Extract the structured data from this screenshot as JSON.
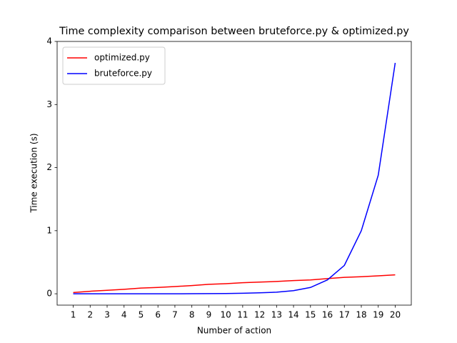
{
  "chart_data": {
    "type": "line",
    "title": "Time complexity comparison between bruteforce.py & optimized.py",
    "x_label": "Number of action",
    "y_label": "Time execution (s)",
    "x": [
      1,
      2,
      3,
      4,
      5,
      6,
      7,
      8,
      9,
      10,
      11,
      12,
      13,
      14,
      15,
      16,
      17,
      18,
      19,
      20
    ],
    "series": [
      {
        "name": "optimized.py",
        "color": "#ff0000",
        "values": [
          0.02,
          0.04,
          0.055,
          0.07,
          0.09,
          0.1,
          0.115,
          0.13,
          0.15,
          0.16,
          0.175,
          0.185,
          0.195,
          0.21,
          0.22,
          0.24,
          0.26,
          0.27,
          0.285,
          0.3
        ]
      },
      {
        "name": "bruteforce.py",
        "color": "#0000ff",
        "values": [
          0,
          0,
          0,
          0,
          0,
          0,
          0,
          0.001,
          0.002,
          0.004,
          0.008,
          0.015,
          0.025,
          0.05,
          0.1,
          0.22,
          0.45,
          1.0,
          1.88,
          3.66
        ]
      }
    ],
    "xlim": [
      0.05,
      20.95
    ],
    "ylim": [
      -0.18,
      4
    ],
    "xticks": [
      1,
      2,
      3,
      4,
      5,
      6,
      7,
      8,
      9,
      10,
      11,
      12,
      13,
      14,
      15,
      16,
      17,
      18,
      19,
      20
    ],
    "yticks": [
      0,
      1,
      2,
      3,
      4
    ],
    "legend": "upper left"
  }
}
